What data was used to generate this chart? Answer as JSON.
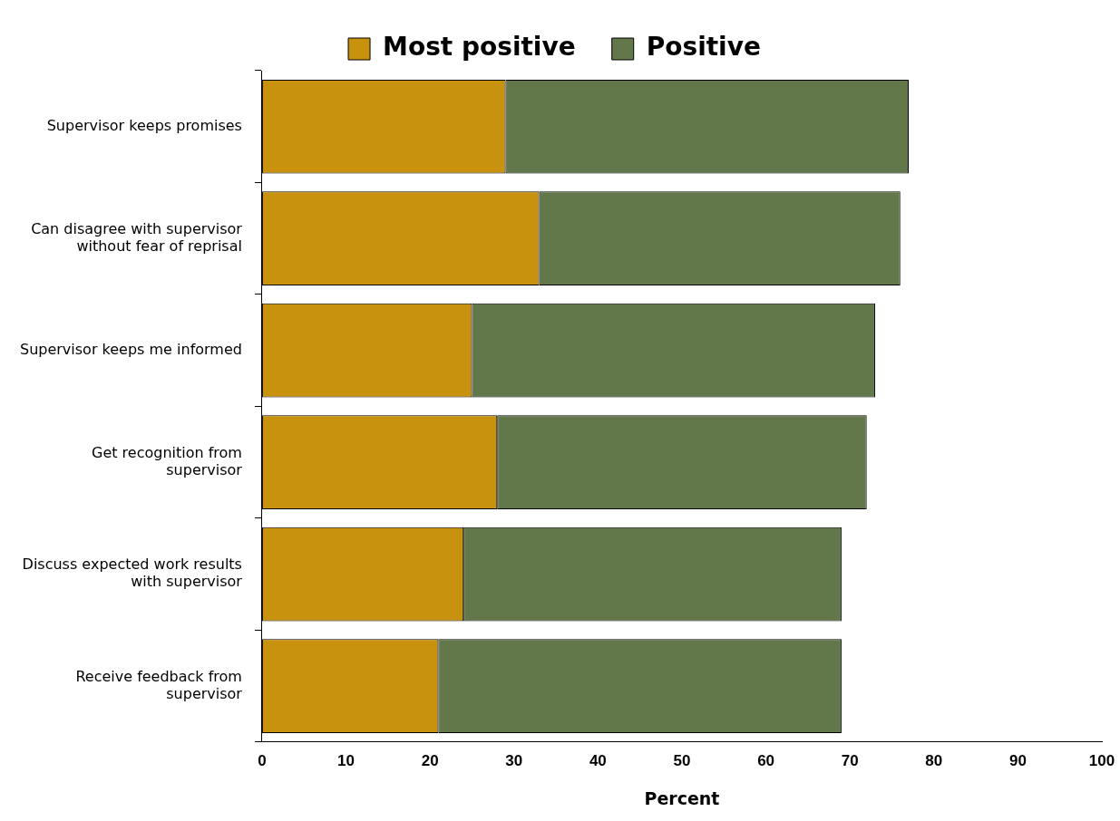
{
  "chart_data": {
    "type": "bar",
    "orientation": "horizontal",
    "stacked": true,
    "categories": [
      "Supervisor keeps promises",
      "Can disagree with supervisor without fear of reprisal",
      "Supervisor keeps me informed",
      "Get recognition from supervisor",
      "Discuss expected work results with supervisor",
      "Receive feedback from supervisor"
    ],
    "series": [
      {
        "name": "Most positive",
        "color": "#c8920f",
        "values": [
          29,
          33,
          25,
          28,
          24,
          21
        ]
      },
      {
        "name": "Positive",
        "color": "#62774a",
        "values": [
          48,
          43,
          48,
          44,
          45,
          48
        ]
      }
    ],
    "xlabel": "Percent",
    "xlim": [
      0,
      100
    ],
    "xticks": [
      0,
      10,
      20,
      30,
      40,
      50,
      60,
      70,
      80,
      90,
      100
    ],
    "grid": false,
    "legend": "top"
  }
}
